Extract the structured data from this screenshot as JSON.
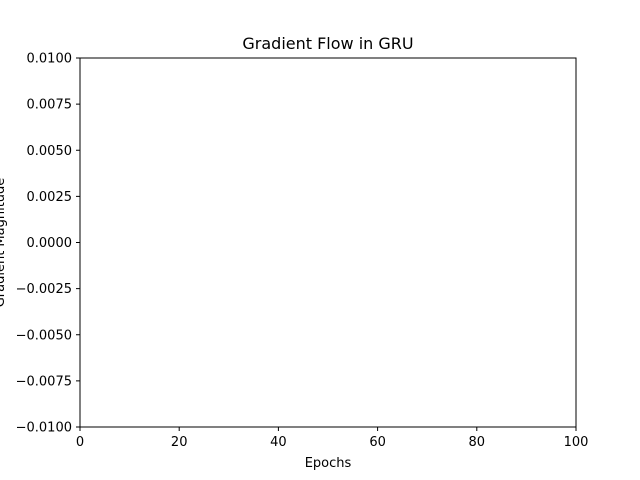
{
  "chart_data": {
    "type": "line",
    "title": "Gradient Flow in GRU",
    "xlabel": "Epochs",
    "ylabel": "Gradient Magnitude",
    "xlim": [
      0,
      100
    ],
    "ylim": [
      -0.01,
      0.01
    ],
    "x_ticks": [
      "0",
      "20",
      "40",
      "60",
      "80",
      "100"
    ],
    "y_ticks": [
      "−0.0100",
      "−0.0075",
      "−0.0050",
      "−0.0025",
      "0.0000",
      "0.0025",
      "0.0050",
      "0.0075",
      "0.0100"
    ],
    "series": [],
    "grid": false,
    "colors": {
      "axes": "#000000",
      "background": "#ffffff"
    }
  }
}
